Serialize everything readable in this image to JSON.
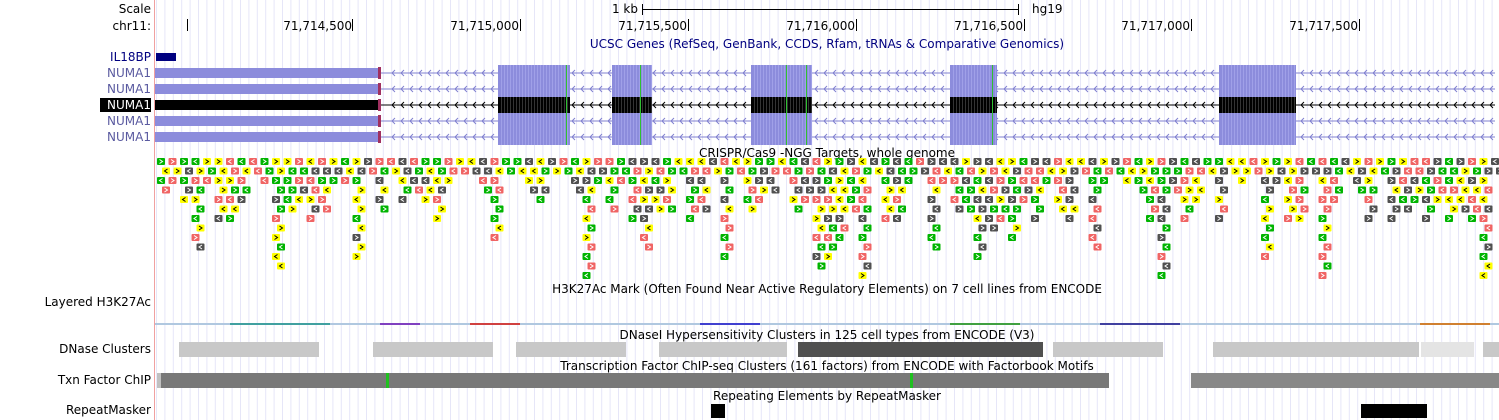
{
  "ruler": {
    "scale_label": "Scale",
    "chrom_label": "chr11:",
    "scale_bar_text": "1 kb",
    "assembly": "hg19",
    "ticks": [
      "71,714,500",
      "71,715,000",
      "71,715,500",
      "71,716,000",
      "71,716,500",
      "71,717,000",
      "71,717,500"
    ]
  },
  "tracks": {
    "ucsc_genes": {
      "title": "UCSC Genes (RefSeq, GenBank, CCDS, Rfam, tRNAs & Comparative Genomics)",
      "genes": [
        "IL18BP",
        "NUMA1",
        "NUMA1",
        "NUMA1",
        "NUMA1",
        "NUMA1"
      ],
      "selected_index": 3
    },
    "crispr": {
      "title": "CRISPR/Cas9 -NGG Targets, whole genome"
    },
    "h3k27ac": {
      "side_label": "Layered H3K27Ac",
      "title": "H3K27Ac Mark (Often Found Near Active Regulatory Elements) on 7 cell lines from ENCODE"
    },
    "dnase": {
      "side_label": "DNase Clusters",
      "title": "DNaseI Hypersensitivity Clusters in 125 cell types from ENCODE (V3)"
    },
    "txn": {
      "side_label": "Txn Factor ChIP",
      "title": "Transcription Factor ChIP-seq Clusters (161 factors) from ENCODE with Factorbook Motifs"
    },
    "repeat": {
      "side_label": "RepeatMasker",
      "title": "Repeating Elements by RepeatMasker"
    }
  },
  "colors": {
    "gene_body": "#8c8cdc",
    "gene_selected": "#000000",
    "gene_label": "#5a5aa0",
    "crispr_green": "#00b400",
    "crispr_yellow": "#ffff00",
    "crispr_red": "#f06464",
    "crispr_dark": "#505050",
    "dnase_light": "#c8c8c8",
    "dnase_dark": "#505050",
    "txn_gray": "#787878",
    "repeat_black": "#000000"
  }
}
